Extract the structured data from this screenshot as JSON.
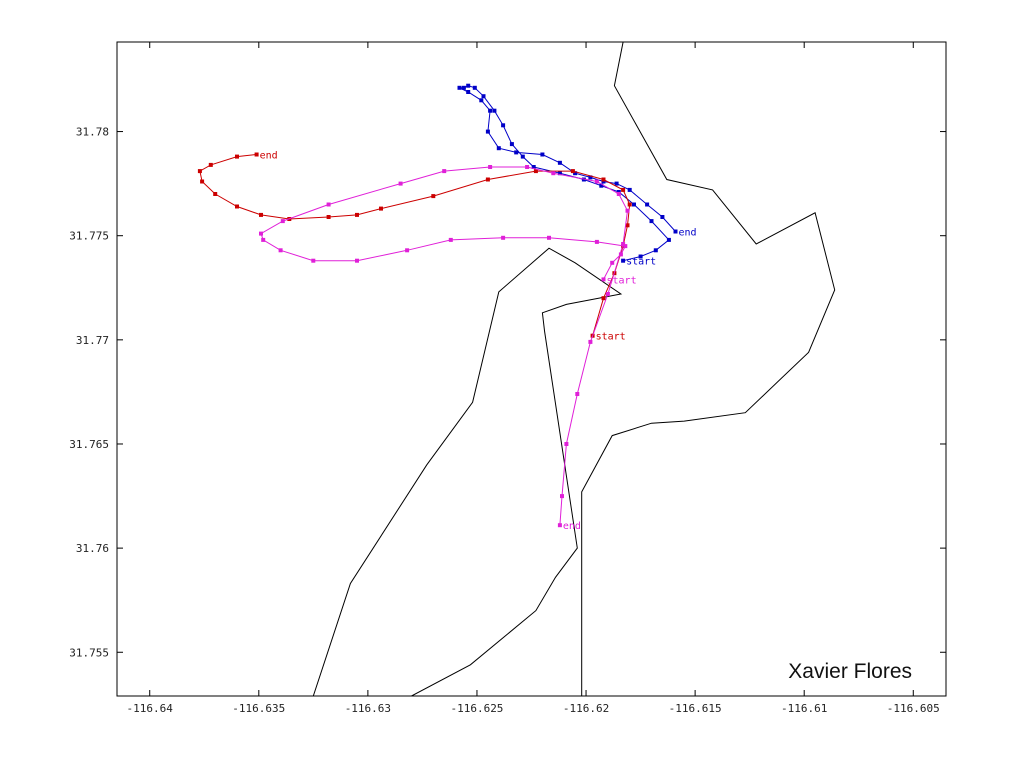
{
  "chart_data": {
    "type": "line",
    "xlim": [
      -116.6415,
      -116.6035
    ],
    "ylim": [
      31.7529,
      31.7843
    ],
    "x_ticks": [
      -116.64,
      -116.635,
      -116.63,
      -116.625,
      -116.62,
      -116.615,
      -116.61,
      -116.605
    ],
    "y_ticks": [
      31.755,
      31.76,
      31.765,
      31.77,
      31.775,
      31.78
    ],
    "x_tick_labels": [
      "-116.64",
      "-116.635",
      "-116.63",
      "-116.625",
      "-116.62",
      "-116.615",
      "-116.61",
      "-116.605"
    ],
    "y_tick_labels": [
      "31.755",
      "31.76",
      "31.765",
      "31.77",
      "31.775",
      "31.78"
    ],
    "grid": false,
    "coastlines": [
      {
        "color": "#000000",
        "x": [
          -116.6183,
          -116.6187,
          -116.6163,
          -116.6142,
          -116.6122,
          -116.6095,
          -116.6086,
          -116.6098,
          -116.6127,
          -116.6155,
          -116.617,
          -116.6188,
          -116.6202,
          -116.6202
        ],
        "y": [
          31.7843,
          31.7822,
          31.7777,
          31.7772,
          31.7746,
          31.7761,
          31.7724,
          31.7694,
          31.7665,
          31.7661,
          31.766,
          31.7654,
          31.7627,
          31.7529
        ]
      },
      {
        "color": "#000000",
        "x": [
          -116.6325,
          -116.6308,
          -116.6273,
          -116.6252,
          -116.624,
          -116.6217,
          -116.6205,
          -116.6184,
          -116.6209,
          -116.622,
          -116.6219,
          -116.6204,
          -116.6214,
          -116.6223,
          -116.6253,
          -116.628
        ],
        "y": [
          31.7529,
          31.7583,
          31.764,
          31.767,
          31.7723,
          31.7744,
          31.7737,
          31.7722,
          31.7717,
          31.7713,
          31.7704,
          31.76,
          31.7586,
          31.757,
          31.7544,
          31.7529
        ]
      }
    ],
    "series": [
      {
        "color": "#0000c8",
        "x": [
          -116.6183,
          -116.6175,
          -116.6168,
          -116.6162,
          -116.617,
          -116.6178,
          -116.6185,
          -116.6193,
          -116.6201,
          -116.6212,
          -116.6224,
          -116.6229,
          -116.6234,
          -116.6238,
          -116.6242,
          -116.6247,
          -116.6251,
          -116.6254,
          -116.6256,
          -116.6258,
          -116.6254,
          -116.6248,
          -116.6244,
          -116.6245,
          -116.624,
          -116.6232,
          -116.622,
          -116.6212,
          -116.6205,
          -116.6198,
          -116.6192,
          -116.6186,
          -116.618,
          -116.6172,
          -116.6165,
          -116.6159
        ],
        "y": [
          31.7738,
          31.774,
          31.7743,
          31.7748,
          31.7757,
          31.7765,
          31.7771,
          31.7774,
          31.7777,
          31.778,
          31.7783,
          31.7788,
          31.7794,
          31.7803,
          31.781,
          31.7817,
          31.7821,
          31.7822,
          31.7821,
          31.7821,
          31.7819,
          31.7815,
          31.781,
          31.78,
          31.7792,
          31.779,
          31.7789,
          31.7785,
          31.778,
          31.7778,
          31.7776,
          31.7775,
          31.7772,
          31.7765,
          31.7759,
          31.7752
        ]
      },
      {
        "color": "#cc0000",
        "x": [
          -116.6197,
          -116.6192,
          -116.6187,
          -116.6183,
          -116.6181,
          -116.618,
          -116.6183,
          -116.6192,
          -116.6206,
          -116.6223,
          -116.6245,
          -116.627,
          -116.6294,
          -116.6305,
          -116.6318,
          -116.6336,
          -116.6349,
          -116.636,
          -116.637,
          -116.6376,
          -116.6377,
          -116.6372,
          -116.636,
          -116.6351
        ],
        "y": [
          31.7702,
          31.772,
          31.7732,
          31.7745,
          31.7755,
          31.7765,
          31.7772,
          31.7777,
          31.7781,
          31.7781,
          31.7777,
          31.7769,
          31.7763,
          31.776,
          31.7759,
          31.7758,
          31.776,
          31.7764,
          31.777,
          31.7776,
          31.7781,
          31.7784,
          31.7788,
          31.7789
        ]
      },
      {
        "color": "#e020d8",
        "x": [
          -116.6192,
          -116.6188,
          -116.6184,
          -116.6182,
          -116.6195,
          -116.6217,
          -116.6238,
          -116.6262,
          -116.6282,
          -116.6305,
          -116.6325,
          -116.634,
          -116.6348,
          -116.6349,
          -116.6339,
          -116.6318,
          -116.6285,
          -116.6265,
          -116.6244,
          -116.6227,
          -116.6215,
          -116.6195,
          -116.6185,
          -116.6181,
          -116.6183,
          -116.619,
          -116.6198,
          -116.6204,
          -116.6209,
          -116.6211,
          -116.6212
        ],
        "y": [
          31.7729,
          31.7737,
          31.7741,
          31.7745,
          31.7747,
          31.7749,
          31.7749,
          31.7748,
          31.7743,
          31.7738,
          31.7738,
          31.7743,
          31.7748,
          31.7751,
          31.7757,
          31.7765,
          31.7775,
          31.7781,
          31.7783,
          31.7783,
          31.778,
          31.7776,
          31.777,
          31.7762,
          31.7746,
          31.7722,
          31.7699,
          31.7674,
          31.765,
          31.7625,
          31.7611
        ]
      }
    ],
    "annotations": [
      {
        "text": "end",
        "x": -116.6351,
        "y": 31.7789,
        "color": "#cc0000"
      },
      {
        "text": "end",
        "x": -116.6159,
        "y": 31.7752,
        "color": "#0000c8"
      },
      {
        "text": "start",
        "x": -116.6183,
        "y": 31.7738,
        "color": "#0000c8"
      },
      {
        "text": "start",
        "x": -116.6192,
        "y": 31.7729,
        "color": "#e020d8"
      },
      {
        "text": "start",
        "x": -116.6197,
        "y": 31.7702,
        "color": "#cc0000"
      },
      {
        "text": "end",
        "x": -116.6212,
        "y": 31.7611,
        "color": "#e020d8"
      }
    ]
  },
  "watermark": "Xavier Flores"
}
